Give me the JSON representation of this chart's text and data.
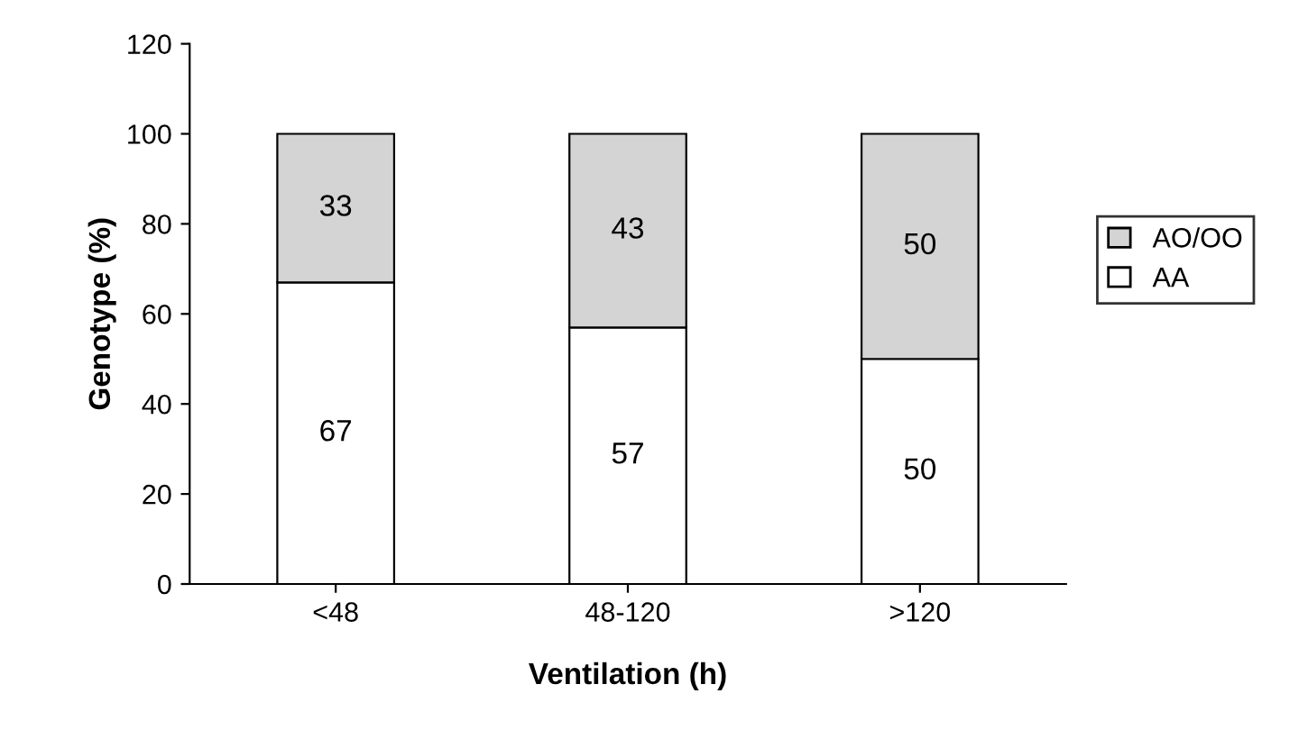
{
  "chart_data": {
    "type": "bar",
    "stacked": true,
    "xlabel": "Ventilation (h)",
    "ylabel": "Genotype (%)",
    "categories": [
      "<48",
      "48-120",
      ">120"
    ],
    "series": [
      {
        "name": "AA",
        "color": "#ffffff",
        "values": [
          67,
          57,
          50
        ]
      },
      {
        "name": "AO/OO",
        "color": "#d4d4d4",
        "values": [
          33,
          43,
          50
        ]
      }
    ],
    "ylim": [
      0,
      120
    ],
    "yticks": [
      0,
      20,
      40,
      60,
      80,
      100,
      120
    ],
    "grid": false,
    "legend": "right",
    "data_labels": true
  }
}
